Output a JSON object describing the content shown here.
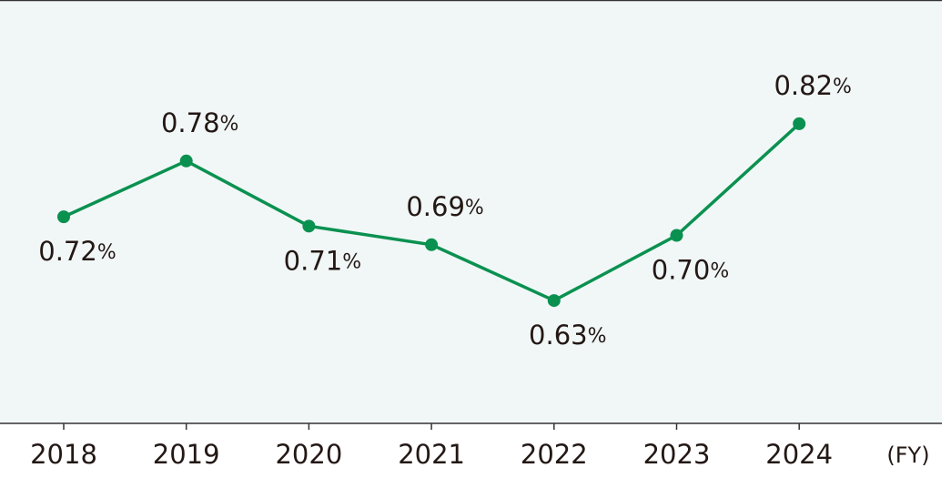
{
  "chart_data": {
    "type": "line",
    "categories": [
      "2018",
      "2019",
      "2020",
      "2021",
      "2022",
      "2023",
      "2024"
    ],
    "values": [
      0.72,
      0.78,
      0.71,
      0.69,
      0.63,
      0.7,
      0.82
    ],
    "value_labels": [
      "0.72%",
      "0.78%",
      "0.71%",
      "0.69%",
      "0.63%",
      "0.70%",
      "0.82%"
    ],
    "color": "#0a9150",
    "ylim": [
      0.498,
      0.953
    ],
    "x_label": "(FY)"
  }
}
